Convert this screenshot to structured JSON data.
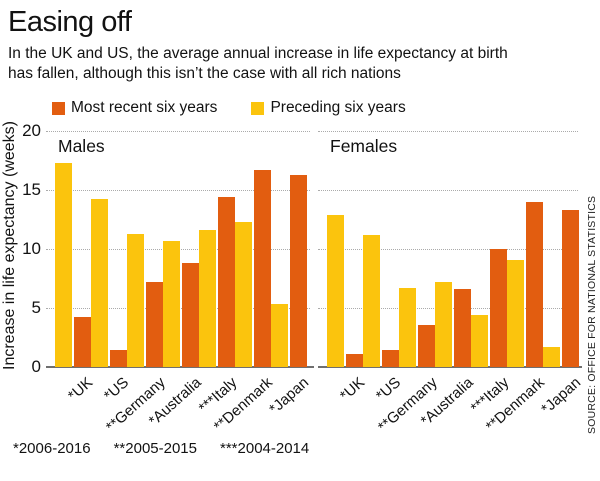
{
  "header": {
    "title": "Easing off",
    "subtitle_lines": [
      "In the UK and US, the average annual increase in life expectancy at birth",
      "has fallen, although this isn’t the case with all rich nations"
    ]
  },
  "legend": {
    "items": [
      {
        "label": "Most recent six years",
        "color": "#e25d10"
      },
      {
        "label": "Preceding six years",
        "color": "#fbc40d"
      }
    ]
  },
  "chart_data": {
    "type": "bar",
    "title": "Easing off",
    "ylabel": "Increase in life expectancy (weeks)",
    "ylim": [
      0,
      20
    ],
    "yticks": [
      20,
      15,
      10,
      5,
      0
    ],
    "grid": "horizontal-dotted",
    "legend_position": "top",
    "bar_order": [
      "Preceding six years",
      "Most recent six years"
    ],
    "series_colors": {
      "preceding": "#fbc40d",
      "recent": "#e25d10"
    },
    "categories": [
      "*UK",
      "*US",
      "**Germany",
      "*Australia",
      "***Italy",
      "**Denmark",
      "*Japan"
    ],
    "panels": [
      {
        "label": "Males",
        "series": [
          {
            "name": "Preceding six years",
            "key": "preceding",
            "values": [
              17.3,
              14.2,
              11.3,
              10.7,
              11.6,
              12.3,
              5.3
            ]
          },
          {
            "name": "Most recent six years",
            "key": "recent",
            "values": [
              4.2,
              1.4,
              7.2,
              8.8,
              14.4,
              16.7,
              16.3
            ]
          }
        ]
      },
      {
        "label": "Females",
        "series": [
          {
            "name": "Preceding six years",
            "key": "preceding",
            "values": [
              12.9,
              11.2,
              6.7,
              7.2,
              4.4,
              9.1,
              1.7
            ]
          },
          {
            "name": "Most recent six years",
            "key": "recent",
            "values": [
              1.1,
              1.4,
              3.6,
              6.6,
              10.0,
              14.0,
              13.3
            ]
          }
        ]
      }
    ],
    "footnotes": [
      "*2006-2016",
      "**2005-2015",
      "***2004-2014"
    ],
    "source": "SOURCE: OFFICE FOR NATIONAL STATISTICS"
  }
}
